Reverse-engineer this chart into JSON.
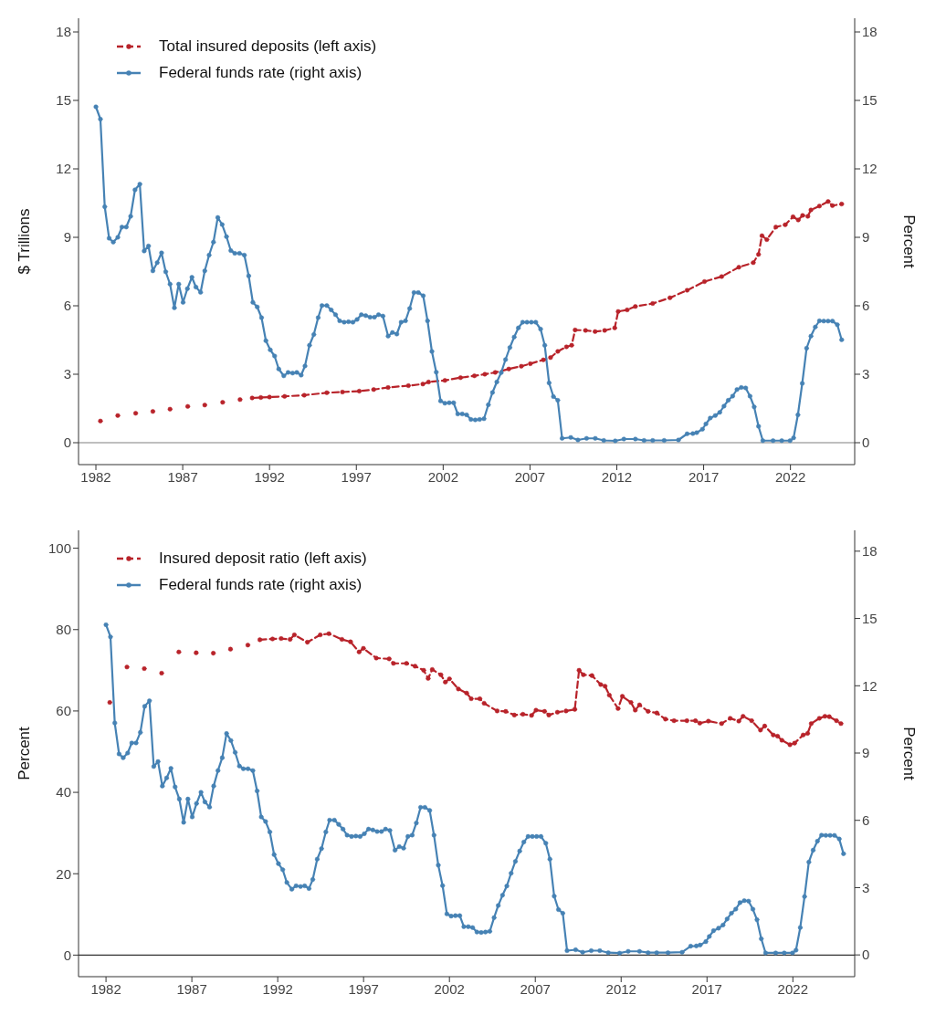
{
  "chart_data": [
    {
      "type": "line",
      "ylabel": "$ Trillions",
      "y2label": "Percent",
      "xlim": [
        1981,
        2025.7
      ],
      "xticks": [
        1982,
        1987,
        1992,
        1997,
        2002,
        2007,
        2012,
        2017,
        2022
      ],
      "ylim": [
        -0.96,
        18.6
      ],
      "yticks": [
        0,
        3,
        6,
        9,
        12,
        15,
        18
      ],
      "y2lim": [
        -0.96,
        18.6
      ],
      "y2ticks": [
        0,
        3,
        6,
        9,
        12,
        15,
        18
      ],
      "legend": "top left",
      "marker": "circle",
      "ref_lines": [
        {
          "axis": "y",
          "value": 0,
          "color": "#808080"
        }
      ],
      "series": [
        {
          "name": "Total insured deposits (left axis)",
          "color": "#b8232a",
          "line_style": "dashed",
          "axis": "y",
          "x": [
            1982.26,
            1982.76,
            1983.26,
            1983.76,
            1984.29,
            1984.8,
            1985.28,
            1985.8,
            1986.27,
            1986.8,
            1987.29,
            1987.8,
            1988.27,
            1988.8,
            1989.3,
            1989.8,
            1990.3,
            1990.65,
            1991.0,
            1991.5,
            1992.0,
            1992.87,
            1994.0,
            1995.3,
            1996.2,
            1997.17,
            1998.0,
            1998.83,
            2000.0,
            2000.83,
            2001.16,
            2002.1,
            2003.0,
            2003.8,
            2004.4,
            2005.0,
            2005.78,
            2006.5,
            2007.02,
            2007.77,
            2008.18,
            2008.6,
            2009.1,
            2009.4,
            2009.6,
            2010.2,
            2010.75,
            2011.3,
            2011.88,
            2012.08,
            2012.6,
            2013.07,
            2014.07,
            2015.06,
            2016.05,
            2017.05,
            2018.04,
            2019.03,
            2019.86,
            2020.16,
            2020.36,
            2020.64,
            2021.16,
            2021.7,
            2022.15,
            2022.45,
            2022.7,
            2023.0,
            2023.18,
            2023.67,
            2024.17,
            2024.42,
            2024.95
          ],
          "values": [
            0.95,
            null,
            1.19,
            null,
            1.29,
            null,
            1.37,
            null,
            1.47,
            null,
            1.59,
            null,
            1.65,
            null,
            1.77,
            null,
            1.89,
            null,
            1.96,
            1.98,
            2.0,
            2.03,
            2.08,
            2.19,
            2.22,
            2.26,
            2.33,
            2.42,
            2.5,
            2.57,
            2.66,
            2.73,
            2.85,
            2.93,
            3.0,
            3.08,
            3.23,
            3.35,
            3.46,
            3.63,
            3.73,
            4.0,
            4.2,
            4.27,
            4.94,
            4.92,
            4.87,
            4.92,
            5.03,
            5.75,
            5.82,
            5.97,
            6.1,
            6.35,
            6.68,
            7.06,
            7.28,
            7.69,
            7.89,
            8.25,
            9.07,
            8.9,
            9.45,
            9.55,
            9.9,
            9.76,
            9.96,
            9.92,
            10.2,
            10.37,
            10.57,
            10.39,
            10.46
          ]
        },
        {
          "name": "Federal funds rate (right axis)",
          "color": "#4682b4",
          "line_style": "solid",
          "axis": "y2",
          "x": [
            1982.0,
            1982.26,
            1982.51,
            1982.76,
            1983.0,
            1983.26,
            1983.5,
            1983.75,
            1984.0,
            1984.25,
            1984.53,
            1984.78,
            1985.03,
            1985.28,
            1985.53,
            1985.78,
            1986.02,
            1986.27,
            1986.52,
            1986.77,
            1987.02,
            1987.27,
            1987.53,
            1987.76,
            1988.03,
            1988.27,
            1988.52,
            1988.77,
            1989.02,
            1989.27,
            1989.52,
            1989.77,
            1990.0,
            1990.27,
            1990.55,
            1990.8,
            1991.04,
            1991.29,
            1991.54,
            1991.79,
            1992.04,
            1992.29,
            1992.53,
            1992.82,
            1993.07,
            1993.33,
            1993.57,
            1993.82,
            1994.04,
            1994.3,
            1994.55,
            1994.8,
            1995.02,
            1995.3,
            1995.55,
            1995.8,
            1996.04,
            1996.3,
            1996.55,
            1996.8,
            1997.04,
            1997.29,
            1997.54,
            1997.79,
            1998.04,
            1998.28,
            1998.53,
            1998.83,
            1999.08,
            1999.33,
            1999.58,
            1999.83,
            2000.07,
            2000.32,
            2000.57,
            2000.85,
            2001.1,
            2001.35,
            2001.6,
            2001.85,
            2002.1,
            2002.35,
            2002.6,
            2002.84,
            2003.1,
            2003.35,
            2003.6,
            2003.85,
            2004.1,
            2004.35,
            2004.6,
            2004.84,
            2005.09,
            2005.34,
            2005.59,
            2005.84,
            2006.09,
            2006.33,
            2006.58,
            2006.83,
            2007.08,
            2007.33,
            2007.61,
            2007.85,
            2008.1,
            2008.35,
            2008.6,
            2008.85,
            2009.35,
            2009.76,
            2010.26,
            2010.76,
            2011.25,
            2011.91,
            2012.41,
            2013.07,
            2013.57,
            2014.07,
            2014.73,
            2015.55,
            2016.05,
            2016.38,
            2016.6,
            2016.93,
            2017.13,
            2017.38,
            2017.67,
            2017.93,
            2018.17,
            2018.42,
            2018.67,
            2018.92,
            2019.17,
            2019.42,
            2019.67,
            2019.91,
            2020.16,
            2020.41,
            2021.0,
            2021.5,
            2021.98,
            2022.18,
            2022.43,
            2022.68,
            2022.93,
            2023.18,
            2023.43,
            2023.67,
            2023.92,
            2024.17,
            2024.42,
            2024.7,
            2024.95
          ],
          "values": [
            14.72,
            14.18,
            10.34,
            8.96,
            8.79,
            9.0,
            9.45,
            9.45,
            9.92,
            11.08,
            11.33,
            8.4,
            8.62,
            7.53,
            7.89,
            8.32,
            7.49,
            6.95,
            5.91,
            6.95,
            6.15,
            6.75,
            7.25,
            6.82,
            6.59,
            7.53,
            8.22,
            8.79,
            9.87,
            9.56,
            9.03,
            8.42,
            8.3,
            8.3,
            8.22,
            7.31,
            6.15,
            5.95,
            5.48,
            4.47,
            4.07,
            3.8,
            3.23,
            2.93,
            3.08,
            3.05,
            3.08,
            2.96,
            3.36,
            4.27,
            4.74,
            5.48,
            6.01,
            6.01,
            5.82,
            5.61,
            5.34,
            5.28,
            5.3,
            5.28,
            5.4,
            5.61,
            5.57,
            5.5,
            5.5,
            5.61,
            5.55,
            4.67,
            4.83,
            4.76,
            5.28,
            5.34,
            5.88,
            6.58,
            6.58,
            6.44,
            5.34,
            4.0,
            3.09,
            1.83,
            1.73,
            1.75,
            1.75,
            1.26,
            1.26,
            1.22,
            1.02,
            1.0,
            1.02,
            1.05,
            1.66,
            2.2,
            2.66,
            3.07,
            3.64,
            4.17,
            4.63,
            5.03,
            5.28,
            5.28,
            5.28,
            5.28,
            4.98,
            4.27,
            2.62,
            2.02,
            1.86,
            0.19,
            0.23,
            0.12,
            0.19,
            0.19,
            0.1,
            0.08,
            0.16,
            0.16,
            0.1,
            0.1,
            0.1,
            0.12,
            0.39,
            0.4,
            0.44,
            0.59,
            0.82,
            1.08,
            1.19,
            1.33,
            1.6,
            1.86,
            2.04,
            2.33,
            2.42,
            2.4,
            2.04,
            1.57,
            0.72,
            0.09,
            0.09,
            0.09,
            0.09,
            0.21,
            1.22,
            2.6,
            4.14,
            4.67,
            5.07,
            5.34,
            5.33,
            5.33,
            5.33,
            5.17,
            4.51
          ]
        }
      ]
    },
    {
      "type": "line",
      "ylabel": "Percent",
      "y2label": "Percent",
      "xlim": [
        1980.4,
        2025.6
      ],
      "xticks": [
        1982,
        1987,
        1992,
        1997,
        2002,
        2007,
        2012,
        2017,
        2022
      ],
      "ylim": [
        -5.3,
        104.4
      ],
      "yticks": [
        0,
        20,
        40,
        60,
        80,
        100
      ],
      "y2lim": [
        -0.97,
        18.93
      ],
      "y2ticks": [
        0,
        3,
        6,
        9,
        12,
        15,
        18
      ],
      "legend": "top left",
      "marker": "circle",
      "ref_lines": [
        {
          "axis": "y",
          "value": 0,
          "color": "#333333"
        }
      ],
      "series": [
        {
          "name": "Insured deposit ratio (left axis)",
          "color": "#b8232a",
          "line_style": "dashed",
          "axis": "y",
          "x": [
            1982.22,
            1982.72,
            1983.22,
            1983.72,
            1984.23,
            1984.73,
            1985.24,
            1985.74,
            1986.24,
            1986.74,
            1987.25,
            1987.75,
            1988.25,
            1988.75,
            1989.25,
            1989.75,
            1990.26,
            1990.6,
            1990.96,
            1991.7,
            1992.2,
            1992.72,
            1992.97,
            1993.73,
            1994.48,
            1994.98,
            1995.74,
            1996.24,
            1996.74,
            1996.99,
            1997.74,
            1998.49,
            1998.74,
            1999.5,
            2000.0,
            2000.5,
            2000.76,
            2001.0,
            2001.5,
            2001.76,
            2002.0,
            2002.52,
            2003.0,
            2003.27,
            2003.77,
            2004.02,
            2004.78,
            2005.28,
            2005.78,
            2006.28,
            2006.78,
            2007.04,
            2007.54,
            2007.79,
            2008.29,
            2008.79,
            2009.3,
            2009.55,
            2009.8,
            2010.3,
            2010.81,
            2011.06,
            2011.31,
            2011.82,
            2012.07,
            2012.57,
            2012.82,
            2013.07,
            2013.57,
            2014.08,
            2014.58,
            2015.08,
            2015.83,
            2016.33,
            2016.58,
            2017.08,
            2017.85,
            2018.35,
            2018.85,
            2019.1,
            2019.6,
            2020.11,
            2020.36,
            2020.86,
            2021.11,
            2021.36,
            2021.83,
            2022.1,
            2022.6,
            2022.86,
            2023.07,
            2023.54,
            2023.87,
            2024.12,
            2024.54,
            2024.8
          ],
          "values": [
            62.1,
            null,
            70.8,
            null,
            70.4,
            null,
            69.3,
            null,
            74.5,
            null,
            74.3,
            null,
            74.2,
            null,
            75.2,
            null,
            76.2,
            null,
            77.5,
            77.7,
            77.8,
            77.6,
            78.7,
            76.9,
            78.7,
            79.0,
            77.6,
            77.0,
            74.5,
            75.4,
            73.0,
            72.8,
            71.7,
            71.7,
            71.0,
            70.0,
            68.0,
            70.2,
            68.9,
            67.1,
            67.9,
            65.4,
            64.4,
            63.0,
            63.0,
            61.9,
            60.0,
            59.9,
            59.0,
            59.2,
            58.9,
            60.2,
            59.9,
            59.0,
            59.7,
            60.0,
            60.4,
            70.0,
            68.9,
            68.7,
            66.5,
            66.1,
            63.9,
            60.6,
            63.6,
            62.1,
            60.2,
            61.5,
            59.9,
            59.5,
            58.0,
            57.6,
            57.6,
            57.6,
            57.0,
            57.5,
            56.9,
            58.2,
            57.5,
            58.7,
            57.6,
            55.3,
            56.3,
            54.1,
            53.8,
            52.8,
            51.7,
            52.1,
            54.1,
            54.5,
            56.9,
            58.2,
            58.7,
            58.6,
            57.6,
            56.9
          ]
        },
        {
          "name": "Federal funds rate (right axis)",
          "color": "#4682b4",
          "line_style": "solid",
          "axis": "y2",
          "x": [
            1982.0,
            1982.26,
            1982.51,
            1982.76,
            1983.0,
            1983.26,
            1983.5,
            1983.75,
            1984.0,
            1984.25,
            1984.53,
            1984.78,
            1985.03,
            1985.28,
            1985.53,
            1985.78,
            1986.02,
            1986.27,
            1986.52,
            1986.77,
            1987.02,
            1987.27,
            1987.53,
            1987.76,
            1988.03,
            1988.27,
            1988.52,
            1988.77,
            1989.02,
            1989.27,
            1989.52,
            1989.77,
            1990.0,
            1990.27,
            1990.55,
            1990.8,
            1991.04,
            1991.29,
            1991.54,
            1991.79,
            1992.04,
            1992.29,
            1992.53,
            1992.82,
            1993.07,
            1993.33,
            1993.57,
            1993.82,
            1994.04,
            1994.3,
            1994.55,
            1994.8,
            1995.02,
            1995.3,
            1995.55,
            1995.8,
            1996.04,
            1996.3,
            1996.55,
            1996.8,
            1997.04,
            1997.29,
            1997.54,
            1997.79,
            1998.04,
            1998.28,
            1998.53,
            1998.83,
            1999.08,
            1999.33,
            1999.58,
            1999.83,
            2000.07,
            2000.32,
            2000.57,
            2000.85,
            2001.1,
            2001.35,
            2001.6,
            2001.85,
            2002.1,
            2002.35,
            2002.6,
            2002.84,
            2003.1,
            2003.35,
            2003.6,
            2003.85,
            2004.1,
            2004.35,
            2004.6,
            2004.84,
            2005.09,
            2005.34,
            2005.59,
            2005.84,
            2006.09,
            2006.33,
            2006.58,
            2006.83,
            2007.08,
            2007.33,
            2007.61,
            2007.85,
            2008.1,
            2008.35,
            2008.6,
            2008.85,
            2009.35,
            2009.76,
            2010.26,
            2010.76,
            2011.25,
            2011.91,
            2012.41,
            2013.07,
            2013.57,
            2014.07,
            2014.73,
            2015.55,
            2016.05,
            2016.38,
            2016.6,
            2016.93,
            2017.13,
            2017.38,
            2017.67,
            2017.93,
            2018.17,
            2018.42,
            2018.67,
            2018.92,
            2019.17,
            2019.42,
            2019.67,
            2019.91,
            2020.16,
            2020.41,
            2021.0,
            2021.5,
            2021.98,
            2022.18,
            2022.43,
            2022.68,
            2022.93,
            2023.18,
            2023.43,
            2023.67,
            2023.92,
            2024.17,
            2024.42,
            2024.7,
            2024.95
          ],
          "values": [
            14.72,
            14.18,
            10.34,
            8.96,
            8.79,
            9.0,
            9.45,
            9.45,
            9.92,
            11.08,
            11.33,
            8.4,
            8.62,
            7.53,
            7.89,
            8.32,
            7.49,
            6.95,
            5.91,
            6.95,
            6.15,
            6.75,
            7.25,
            6.82,
            6.59,
            7.53,
            8.22,
            8.79,
            9.87,
            9.56,
            9.03,
            8.42,
            8.3,
            8.3,
            8.22,
            7.31,
            6.15,
            5.95,
            5.48,
            4.47,
            4.07,
            3.8,
            3.23,
            2.93,
            3.08,
            3.05,
            3.08,
            2.96,
            3.36,
            4.27,
            4.74,
            5.48,
            6.01,
            6.01,
            5.82,
            5.61,
            5.34,
            5.28,
            5.3,
            5.28,
            5.4,
            5.61,
            5.57,
            5.5,
            5.5,
            5.61,
            5.55,
            4.67,
            4.83,
            4.76,
            5.28,
            5.34,
            5.88,
            6.58,
            6.58,
            6.44,
            5.34,
            4.0,
            3.09,
            1.83,
            1.73,
            1.75,
            1.75,
            1.26,
            1.26,
            1.22,
            1.02,
            1.0,
            1.02,
            1.05,
            1.66,
            2.2,
            2.66,
            3.07,
            3.64,
            4.17,
            4.63,
            5.03,
            5.28,
            5.28,
            5.28,
            5.28,
            4.98,
            4.27,
            2.62,
            2.02,
            1.86,
            0.19,
            0.23,
            0.12,
            0.19,
            0.19,
            0.1,
            0.08,
            0.16,
            0.16,
            0.1,
            0.1,
            0.1,
            0.12,
            0.39,
            0.4,
            0.44,
            0.59,
            0.82,
            1.08,
            1.19,
            1.33,
            1.6,
            1.86,
            2.04,
            2.33,
            2.42,
            2.4,
            2.04,
            1.57,
            0.72,
            0.09,
            0.09,
            0.09,
            0.09,
            0.21,
            1.22,
            2.6,
            4.14,
            4.67,
            5.07,
            5.34,
            5.33,
            5.33,
            5.33,
            5.17,
            4.51
          ]
        }
      ]
    }
  ]
}
